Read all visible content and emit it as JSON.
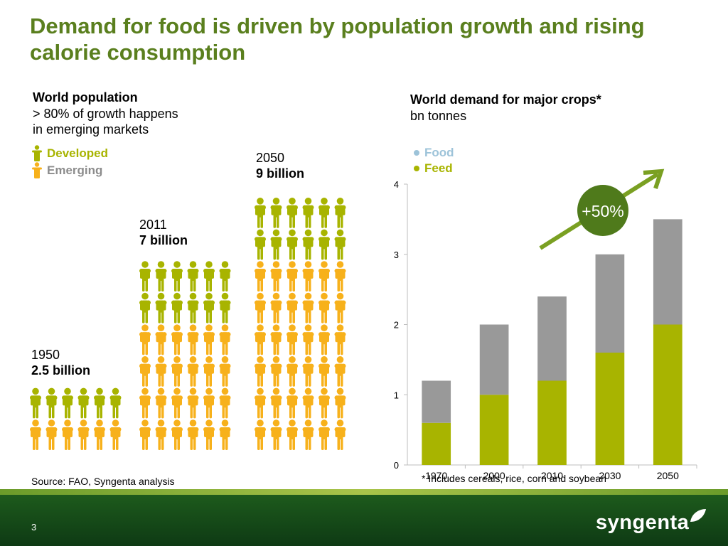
{
  "title": "Demand for food is driven by population growth and rising calorie consumption",
  "population": {
    "heading": "World population",
    "subheading_line1": "> 80% of growth happens",
    "subheading_line2": "in emerging markets",
    "legend": [
      {
        "label": "Developed",
        "color": "#a8b400"
      },
      {
        "label": "Emerging",
        "color": "#f7b11b"
      }
    ],
    "groups": [
      {
        "year": "1950",
        "value_label": "2.5 billion",
        "developed_rows": 1,
        "emerging_rows": 1
      },
      {
        "year": "2011",
        "value_label": "7 billion",
        "developed_rows": 2,
        "emerging_rows": 4
      },
      {
        "year": "2050",
        "value_label": "9 billion",
        "developed_rows": 2,
        "emerging_rows": 6
      }
    ]
  },
  "crops": {
    "heading": "World demand for major crops*",
    "unit": "bn tonnes",
    "legend": [
      {
        "label": "Food",
        "color": "#9dc3d9"
      },
      {
        "label": "Feed",
        "color": "#a8b400"
      }
    ],
    "growth_label": "+50%",
    "footnote": "* Includes cereals, rice, corn and soybean"
  },
  "chart_data": {
    "type": "bar",
    "stacked": true,
    "categories": [
      "1970",
      "2000",
      "2010",
      "2030",
      "2050"
    ],
    "series": [
      {
        "name": "Feed",
        "color": "#a8b400",
        "values": [
          0.6,
          1.0,
          1.2,
          1.6,
          2.0
        ]
      },
      {
        "name": "",
        "color": "#999999",
        "values": [
          0.6,
          1.0,
          1.2,
          1.4,
          1.5
        ]
      }
    ],
    "ylim": [
      0,
      4
    ],
    "yticks": [
      "0",
      "1",
      "2",
      "3",
      "4"
    ],
    "xlabel": "",
    "ylabel": "",
    "grid": false
  },
  "source": "Source: FAO, Syngenta analysis",
  "page_number": "3",
  "logo_text": "syngenta",
  "colors": {
    "title_green": "#5a7f1e",
    "developed": "#a8b400",
    "emerging": "#f7b11b",
    "arrow": "#7aa022",
    "badge": "#4f7a1b"
  }
}
